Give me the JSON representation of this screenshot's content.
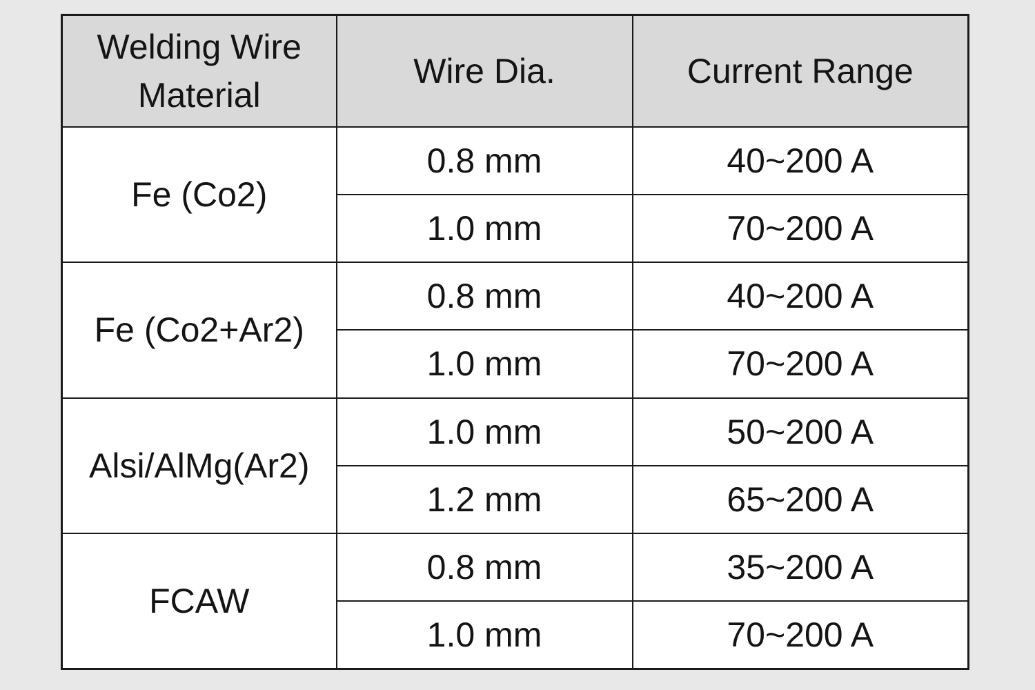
{
  "page": {
    "background_color": "#e8e8e8",
    "text_color": "#141414"
  },
  "table": {
    "header_bg_color": "#d9d9d9",
    "body_bg_color": "#ffffff",
    "border_color": "#1a1a1a",
    "headers": [
      "Welding Wire Material",
      "Wire Dia.",
      "Current Range"
    ],
    "groups": [
      {
        "material": "Fe (Co2)",
        "rows": [
          {
            "dia": "0.8 mm",
            "current": "40~200 A"
          },
          {
            "dia": "1.0 mm",
            "current": "70~200 A"
          }
        ]
      },
      {
        "material": "Fe (Co2+Ar2)",
        "rows": [
          {
            "dia": "0.8 mm",
            "current": "40~200 A"
          },
          {
            "dia": "1.0 mm",
            "current": "70~200 A"
          }
        ]
      },
      {
        "material": "Alsi/AlMg(Ar2)",
        "rows": [
          {
            "dia": "1.0 mm",
            "current": "50~200 A"
          },
          {
            "dia": "1.2 mm",
            "current": "65~200 A"
          }
        ]
      },
      {
        "material": "FCAW",
        "rows": [
          {
            "dia": "0.8 mm",
            "current": "35~200 A"
          },
          {
            "dia": "1.0 mm",
            "current": "70~200 A"
          }
        ]
      }
    ]
  },
  "chart_data": {
    "type": "table",
    "columns": [
      "Welding Wire Material",
      "Wire Dia.",
      "Current Range"
    ],
    "rows": [
      [
        "Fe (Co2)",
        "0.8 mm",
        "40~200 A"
      ],
      [
        "Fe (Co2)",
        "1.0 mm",
        "70~200 A"
      ],
      [
        "Fe (Co2+Ar2)",
        "0.8 mm",
        "40~200 A"
      ],
      [
        "Fe (Co2+Ar2)",
        "1.0 mm",
        "70~200 A"
      ],
      [
        "Alsi/AlMg(Ar2)",
        "1.0 mm",
        "50~200 A"
      ],
      [
        "Alsi/AlMg(Ar2)",
        "1.2 mm",
        "65~200 A"
      ],
      [
        "FCAW",
        "0.8 mm",
        "35~200 A"
      ],
      [
        "FCAW",
        "1.0 mm",
        "70~200 A"
      ]
    ]
  }
}
